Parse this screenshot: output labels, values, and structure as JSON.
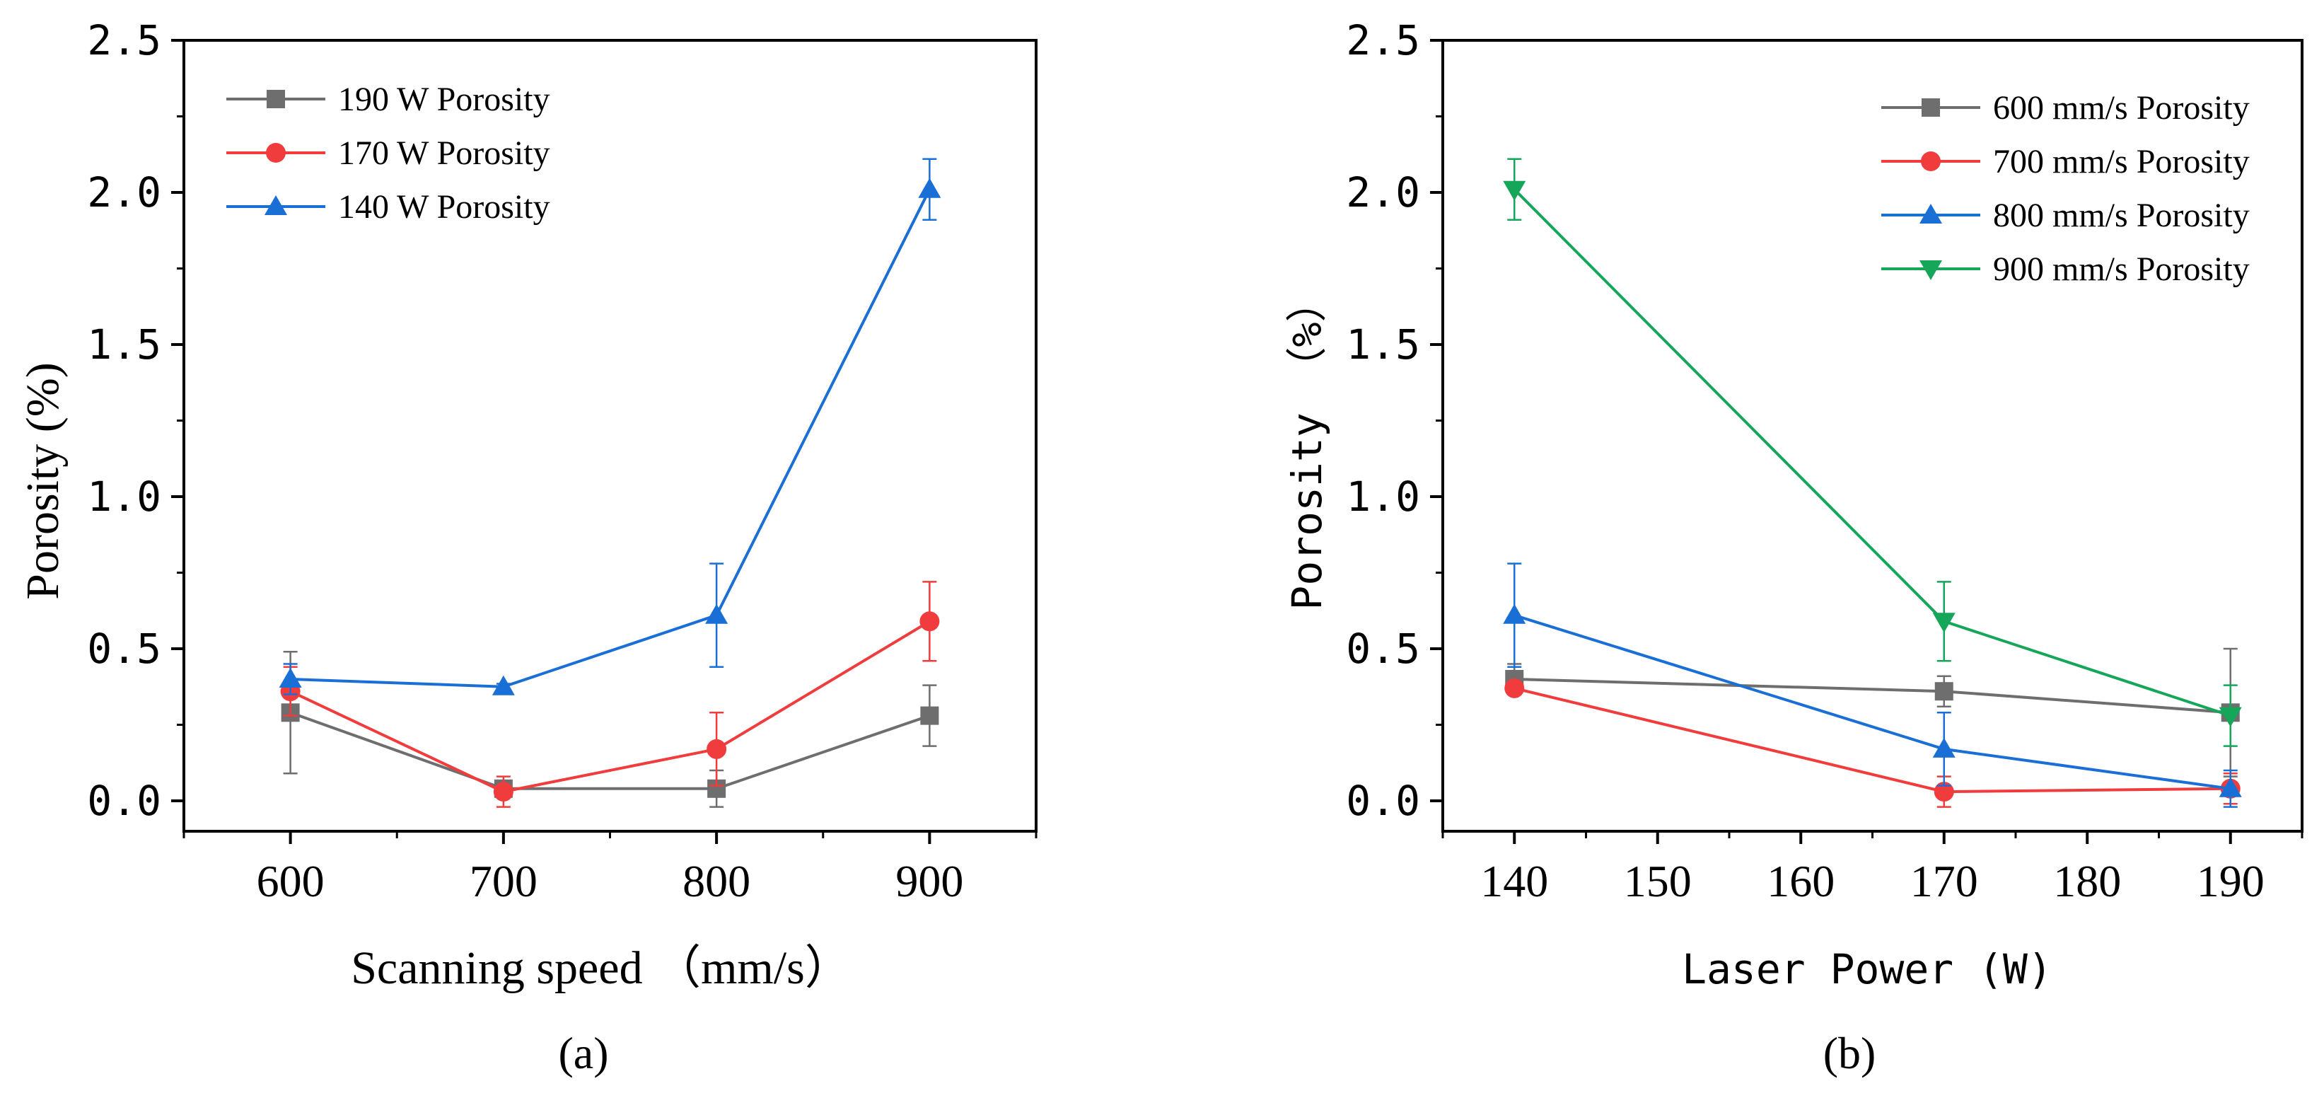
{
  "chart_data": [
    {
      "type": "line",
      "panel_label": "(a)",
      "xlabel": "Scanning speed （mm/s）",
      "ylabel": "Porosity (%)",
      "x": [
        600,
        700,
        800,
        900
      ],
      "xlim": [
        550,
        950
      ],
      "ylim": [
        -0.1,
        2.5
      ],
      "xticks": [
        600,
        700,
        800,
        900
      ],
      "xtick_labels": [
        "600",
        "700",
        "800",
        "900"
      ],
      "yticks": [
        0.0,
        0.5,
        1.0,
        1.5,
        2.0,
        2.5
      ],
      "ytick_labels": [
        "0.0",
        "0.5",
        "1.0",
        "1.5",
        "2.0",
        "2.5"
      ],
      "legend_position": "top-left",
      "series": [
        {
          "name": "190 W Porosity",
          "color": "#6e6e6e",
          "marker": "square",
          "values": [
            0.29,
            0.04,
            0.04,
            0.28
          ],
          "errors": [
            0.2,
            0.02,
            0.06,
            0.1
          ]
        },
        {
          "name": "170 W Porosity",
          "color": "#f03c3c",
          "marker": "circle",
          "values": [
            0.36,
            0.03,
            0.17,
            0.59
          ],
          "errors": [
            0.08,
            0.05,
            0.12,
            0.13
          ]
        },
        {
          "name": "140 W Porosity",
          "color": "#1a6fd6",
          "marker": "triangle-up",
          "values": [
            0.4,
            0.375,
            0.61,
            2.01
          ],
          "errors": [
            0.05,
            0.01,
            0.17,
            0.1
          ]
        }
      ]
    },
    {
      "type": "line",
      "panel_label": "(b)",
      "xlabel": "Laser Power (W)",
      "ylabel": "Porosity （%）",
      "x": [
        140,
        170,
        190
      ],
      "xlim": [
        135,
        195
      ],
      "ylim": [
        -0.1,
        2.5
      ],
      "xticks": [
        140,
        150,
        160,
        170,
        180,
        190
      ],
      "xtick_labels": [
        "140",
        "150",
        "160",
        "170",
        "180",
        "190"
      ],
      "yticks": [
        0.0,
        0.5,
        1.0,
        1.5,
        2.0,
        2.5
      ],
      "ytick_labels": [
        "0.0",
        "0.5",
        "1.0",
        "1.5",
        "2.0",
        "2.5"
      ],
      "legend_position": "top-right",
      "series": [
        {
          "name": "600 mm/s Porosity",
          "color": "#6e6e6e",
          "marker": "square",
          "values": [
            0.4,
            0.36,
            0.29
          ],
          "errors": [
            0.05,
            0.05,
            0.21
          ]
        },
        {
          "name": "700 mm/s Porosity",
          "color": "#f03c3c",
          "marker": "circle",
          "values": [
            0.37,
            0.03,
            0.04
          ],
          "errors": [
            0.02,
            0.05,
            0.05
          ]
        },
        {
          "name": "800 mm/s Porosity",
          "color": "#1a6fd6",
          "marker": "triangle-up",
          "values": [
            0.61,
            0.17,
            0.04
          ],
          "errors": [
            0.17,
            0.12,
            0.06
          ]
        },
        {
          "name": "900 mm/s Porosity",
          "color": "#16a65a",
          "marker": "triangle-down",
          "values": [
            2.01,
            0.59,
            0.28
          ],
          "errors": [
            0.1,
            0.13,
            0.1
          ]
        }
      ]
    }
  ]
}
